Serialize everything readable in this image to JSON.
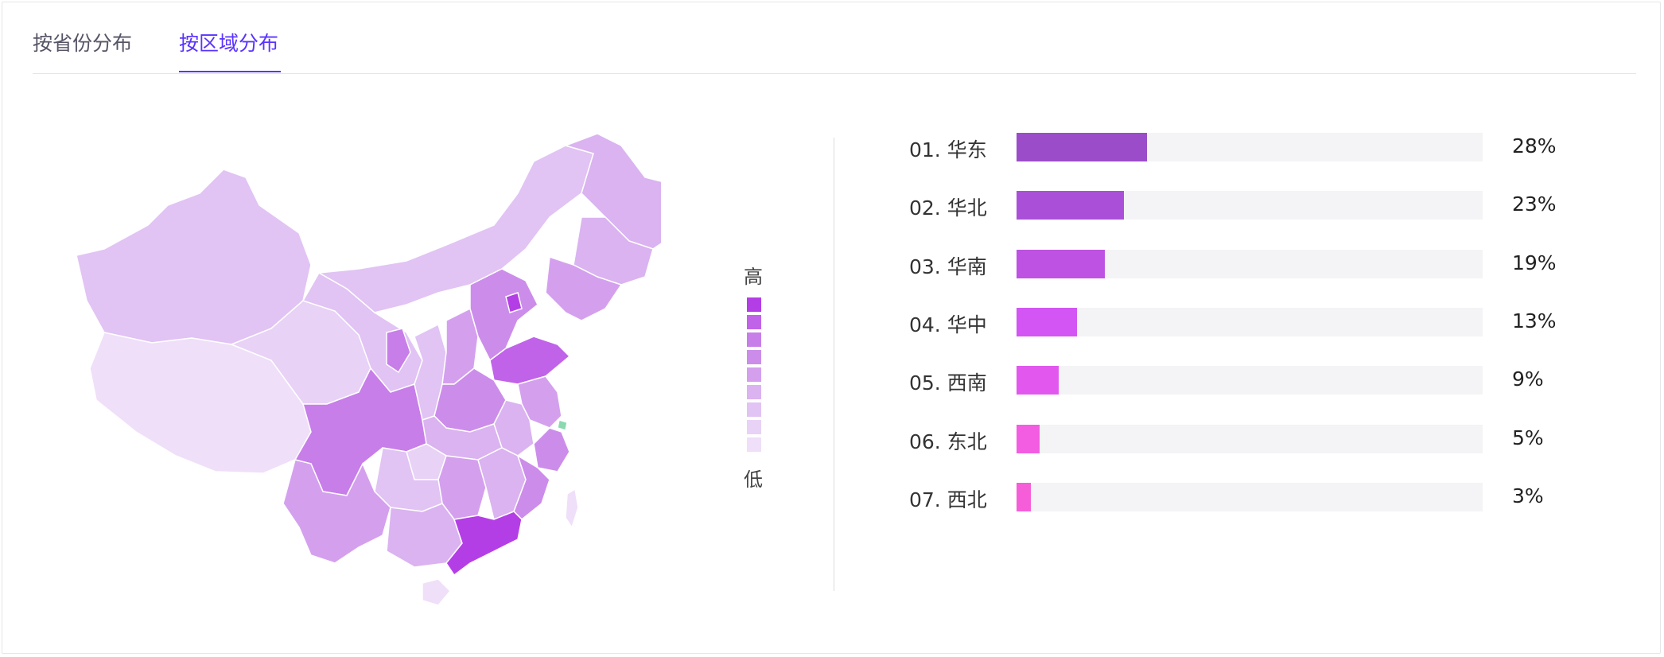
{
  "tabs": [
    {
      "label": "按省份分布",
      "active": false
    },
    {
      "label": "按区域分布",
      "active": true
    }
  ],
  "accent_color": "#5b33ff",
  "legend": {
    "high_label": "高",
    "low_label": "低",
    "colors": [
      "#b43ee6",
      "#c063e9",
      "#c77ee9",
      "#cc8dea",
      "#d4a0ee",
      "#dab3f0",
      "#e1c3f4",
      "#e8d2f6",
      "#efdff9"
    ]
  },
  "chart_data": {
    "type": "bar",
    "orientation": "horizontal",
    "categories": [
      "华东",
      "华北",
      "华南",
      "华中",
      "西南",
      "东北",
      "西北"
    ],
    "rank_labels": [
      "01. 华东",
      "02. 华北",
      "03. 华南",
      "04. 华中",
      "05. 西南",
      "06. 东北",
      "07. 西北"
    ],
    "values": [
      28,
      23,
      19,
      13,
      9,
      5,
      3
    ],
    "value_labels": [
      "28%",
      "23%",
      "19%",
      "13%",
      "9%",
      "5%",
      "3%"
    ],
    "colors": [
      "#9a4cc9",
      "#aa50d8",
      "#bd52e3",
      "#d355f3",
      "#e257ee",
      "#f35de1",
      "#f55ed8"
    ],
    "xlim": [
      0,
      100
    ]
  }
}
